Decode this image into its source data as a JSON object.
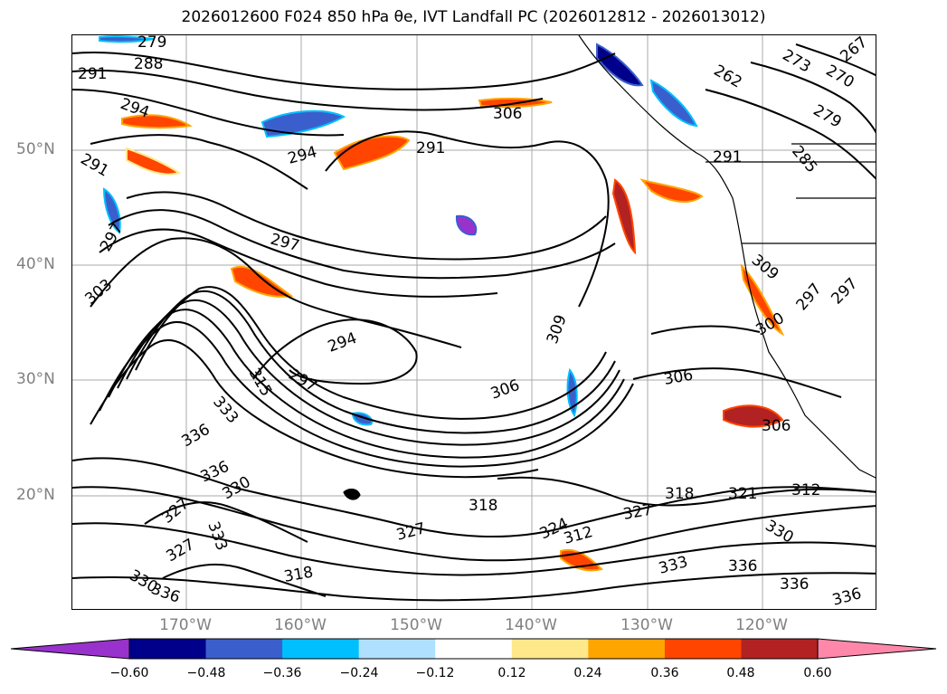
{
  "title": "2026012600 F024 850 hPa θe, IVT Landfall PC (2026012812 - 2026013012)",
  "lat_labels": [
    "50°N",
    "40°N",
    "30°N",
    "20°N"
  ],
  "lon_labels": [
    "170°W",
    "160°W",
    "150°W",
    "140°W",
    "130°W",
    "120°W"
  ],
  "contour_labels": [
    "279",
    "288",
    "291",
    "294",
    "306",
    "291",
    "297",
    "294",
    "291",
    "297",
    "303",
    "297",
    "294",
    "306",
    "309",
    "306",
    "309",
    "300",
    "297",
    "306",
    "315",
    "333",
    "336",
    "336",
    "330",
    "327",
    "333",
    "318",
    "324",
    "327",
    "318",
    "321",
    "312",
    "327",
    "330",
    "333",
    "336",
    "336",
    "336",
    "336",
    "262",
    "273",
    "270",
    "267",
    "279",
    "285",
    "291",
    "297",
    "312",
    "330",
    "327",
    "318"
  ],
  "colorbar": {
    "ticks": [
      "−0.60",
      "−0.48",
      "−0.36",
      "−0.24",
      "−0.12",
      "0.12",
      "0.24",
      "0.36",
      "0.48",
      "0.60"
    ],
    "colors": [
      "#9932CC",
      "#00008B",
      "#3A5FCD",
      "#00BFFF",
      "#B0E0FF",
      "#FFFFFF",
      "#FFE88A",
      "#FFA500",
      "#FF4500",
      "#B22222",
      "#FF88AA"
    ]
  }
}
